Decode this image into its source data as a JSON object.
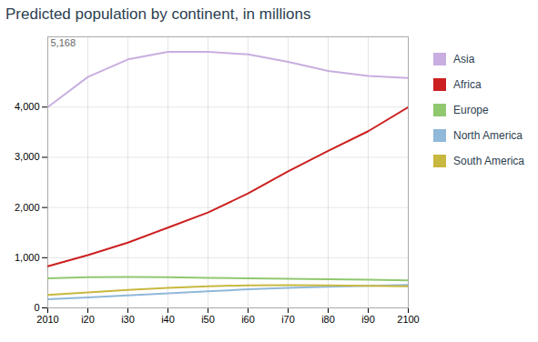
{
  "chart_data": {
    "type": "line",
    "title": "Predicted population by continent, in millions",
    "x": [
      2010,
      2020,
      2030,
      2040,
      2050,
      2060,
      2070,
      2080,
      2090,
      2100
    ],
    "series": [
      {
        "name": "Asia",
        "color": "#c8aee0",
        "values": [
          4000,
          4600,
          4950,
          5100,
          5100,
          5050,
          4900,
          4720,
          4620,
          4580
        ]
      },
      {
        "name": "Africa",
        "color": "#cc2020",
        "values": [
          830,
          1050,
          1300,
          1600,
          1900,
          2280,
          2720,
          3130,
          3520,
          4000
        ]
      },
      {
        "name": "Europe",
        "color": "#90c870",
        "values": [
          590,
          610,
          615,
          610,
          600,
          590,
          580,
          570,
          560,
          550
        ]
      },
      {
        "name": "North America",
        "color": "#90b8d8",
        "values": [
          170,
          210,
          250,
          290,
          330,
          370,
          400,
          420,
          440,
          460
        ]
      },
      {
        "name": "South America",
        "color": "#c8b840",
        "values": [
          260,
          310,
          360,
          400,
          430,
          450,
          455,
          450,
          440,
          430
        ]
      }
    ],
    "xlim": [
      2010,
      2100
    ],
    "xticks": [
      2010,
      {
        "value": 2020,
        "label": "i20"
      },
      {
        "value": 2030,
        "label": "i30"
      },
      {
        "value": 2040,
        "label": "i40"
      },
      {
        "value": 2050,
        "label": "i50"
      },
      {
        "value": 2060,
        "label": "i60"
      },
      {
        "value": 2070,
        "label": "i70"
      },
      {
        "value": 2080,
        "label": "i80"
      },
      {
        "value": 2090,
        "label": "i90"
      },
      2100
    ],
    "ylim": [
      0,
      5400
    ],
    "yticks": [
      0,
      {
        "value": 1000,
        "label": "1,000"
      },
      {
        "value": 2000,
        "label": "2,000"
      },
      {
        "value": 3000,
        "label": "3,000"
      },
      {
        "value": 4000,
        "label": "4,000"
      }
    ],
    "annotations": [
      {
        "text": "5,168",
        "x": 2010,
        "y": 5168
      }
    ],
    "grid": true,
    "legend": "right"
  }
}
